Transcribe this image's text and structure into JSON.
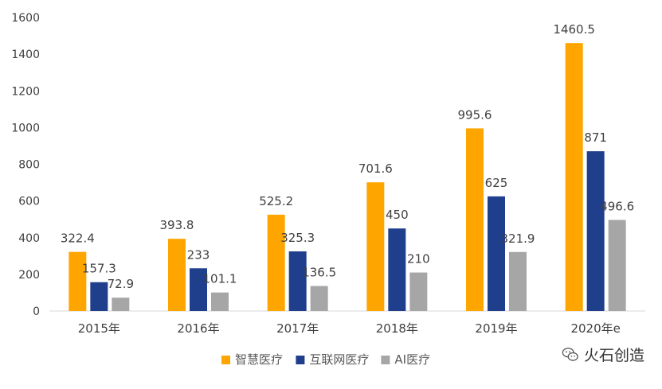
{
  "chart_data": {
    "type": "bar",
    "categories": [
      "2015年",
      "2016年",
      "2017年",
      "2018年",
      "2019年",
      "2020年e"
    ],
    "series": [
      {
        "name": "智慧医疗",
        "color": "#FFA500",
        "values": [
          322.4,
          393.8,
          525.2,
          701.6,
          995.6,
          1460.5
        ],
        "labels": [
          "322.4",
          "393.8",
          "525.2",
          "701.6",
          "995.6",
          "1460.5"
        ]
      },
      {
        "name": "互联网医疗",
        "color": "#1F3F8C",
        "values": [
          157.3,
          233,
          325.3,
          450,
          625,
          871
        ],
        "labels": [
          "157.3",
          "233",
          "325.3",
          "450",
          "625",
          "871"
        ]
      },
      {
        "name": "AI医疗",
        "color": "#A6A6A6",
        "values": [
          72.9,
          101.1,
          136.5,
          210,
          321.9,
          496.6
        ],
        "labels": [
          "72.9",
          "101.1",
          "136.5",
          "210",
          "321.9",
          "496.6"
        ]
      }
    ],
    "ylim": [
      0,
      1600
    ],
    "yticks": [
      "0",
      "200",
      "400",
      "600",
      "800",
      "1000",
      "1200",
      "1400",
      "1600"
    ],
    "grid": false,
    "legend_position": "bottom"
  },
  "watermark": {
    "text": "火石创造",
    "icon": "wechat-icon"
  }
}
